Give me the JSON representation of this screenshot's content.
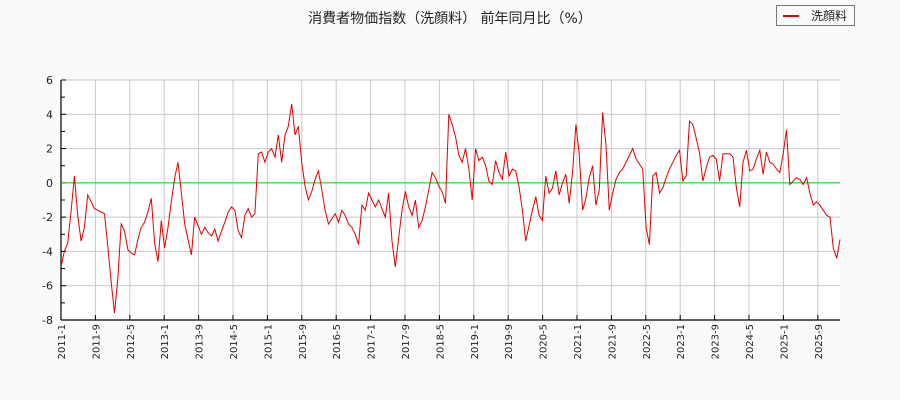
{
  "title": "消費者物価指数（洗顔料） 前年同月比（%）",
  "legend": {
    "label": "洗顔料",
    "color": "#e00000"
  },
  "chart_data": {
    "type": "line",
    "title": "消費者物価指数（洗顔料） 前年同月比（%）",
    "xlabel": "",
    "ylabel": "",
    "ylim": [
      -8,
      6
    ],
    "yticks": [
      6,
      4,
      2,
      0,
      -2,
      -4,
      -6,
      -8
    ],
    "x_tick_labels": [
      "2011-1",
      "2011-9",
      "2012-5",
      "2013-1",
      "2013-9",
      "2014-5",
      "2015-1",
      "2015-9",
      "2016-5",
      "2017-1",
      "2017-9",
      "2018-5",
      "2019-1",
      "2019-9",
      "2020-5",
      "2021-1",
      "2021-9",
      "2022-5",
      "2023-1",
      "2023-9",
      "2024-5",
      "2025-1",
      "2025-9"
    ],
    "grid": true,
    "legend_position": "top-right",
    "reference_line": {
      "y": 0,
      "color": "#00dd00"
    },
    "x_start": "2011-1",
    "x_step_months": 1,
    "series": [
      {
        "name": "洗顔料",
        "color": "#e00000",
        "values": [
          -4.9,
          -4.0,
          -3.5,
          -1.7,
          0.4,
          -1.9,
          -3.4,
          -2.6,
          -0.7,
          -1.1,
          -1.5,
          -1.6,
          -1.7,
          -1.8,
          -3.7,
          -5.8,
          -7.6,
          -5.6,
          -2.4,
          -2.8,
          -3.9,
          -4.1,
          -4.2,
          -3.3,
          -2.6,
          -2.3,
          -1.7,
          -0.9,
          -3.5,
          -4.6,
          -2.2,
          -3.8,
          -2.6,
          -1.1,
          0.3,
          1.2,
          -0.6,
          -2.4,
          -3.3,
          -4.2,
          -2.0,
          -2.5,
          -3.0,
          -2.6,
          -2.9,
          -3.1,
          -2.7,
          -3.4,
          -2.8,
          -2.3,
          -1.7,
          -1.4,
          -1.6,
          -2.8,
          -3.2,
          -1.9,
          -1.5,
          -2.0,
          -1.8,
          1.7,
          1.8,
          1.2,
          1.8,
          2.0,
          1.5,
          2.8,
          1.2,
          2.8,
          3.3,
          4.6,
          2.8,
          3.3,
          1.2,
          -0.2,
          -1.0,
          -0.5,
          0.2,
          0.7,
          -0.4,
          -1.6,
          -2.4,
          -2.1,
          -1.8,
          -2.3,
          -1.6,
          -1.9,
          -2.4,
          -2.6,
          -3.0,
          -3.6,
          -1.3,
          -1.6,
          -0.6,
          -1.0,
          -1.4,
          -1.0,
          -1.5,
          -2.0,
          -0.6,
          -3.4,
          -4.9,
          -3.2,
          -1.6,
          -0.5,
          -1.4,
          -1.9,
          -1.0,
          -2.6,
          -2.2,
          -1.4,
          -0.4,
          0.6,
          0.3,
          -0.2,
          -0.5,
          -1.2,
          4.0,
          3.4,
          2.7,
          1.6,
          1.2,
          2.0,
          0.8,
          -1.0,
          2.0,
          1.3,
          1.5,
          1.0,
          0.1,
          -0.1,
          1.3,
          0.6,
          0.2,
          1.8,
          0.4,
          0.8,
          0.7,
          -0.2,
          -1.6,
          -3.4,
          -2.5,
          -1.6,
          -0.8,
          -1.9,
          -2.2,
          0.4,
          -0.6,
          -0.3,
          0.7,
          -0.7,
          0.0,
          0.5,
          -1.2,
          0.6,
          3.4,
          1.7,
          -1.6,
          -0.9,
          0.3,
          1.0,
          -1.3,
          -0.4,
          4.1,
          2.2,
          -1.6,
          -0.6,
          0.2,
          0.6,
          0.8,
          1.2,
          1.6,
          2.0,
          1.4,
          1.1,
          0.8,
          -2.6,
          -3.6,
          0.4,
          0.6,
          -0.6,
          -0.3,
          0.3,
          0.8,
          1.2,
          1.6,
          1.9,
          0.1,
          0.4,
          3.6,
          3.4,
          2.6,
          1.7,
          0.1,
          0.9,
          1.5,
          1.6,
          1.4,
          0.1,
          1.7,
          1.7,
          1.7,
          1.5,
          -0.3,
          -1.4,
          1.2,
          1.9,
          0.7,
          0.8,
          1.4,
          1.9,
          0.5,
          1.8,
          1.2,
          1.1,
          0.8,
          0.6,
          1.7,
          3.1,
          -0.1,
          0.1,
          0.3,
          0.2,
          -0.1,
          0.3,
          -0.6,
          -1.3,
          -1.1,
          -1.3,
          -1.6,
          -1.9,
          -2.0,
          -3.8,
          -4.4,
          -3.3
        ]
      }
    ]
  }
}
